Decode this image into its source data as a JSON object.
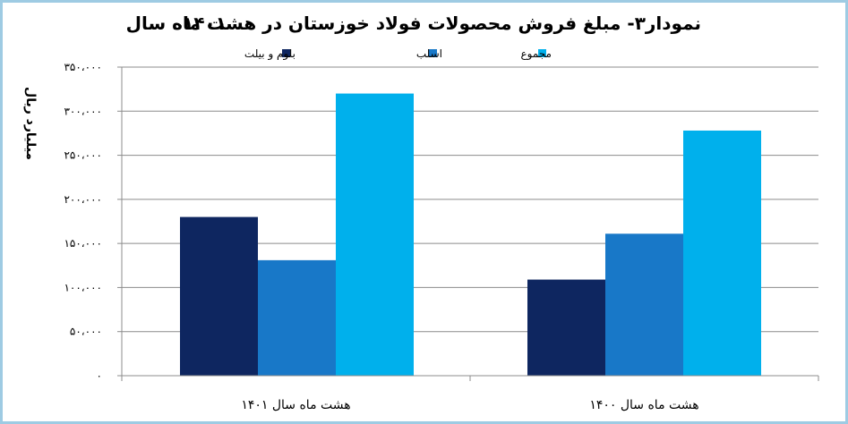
{
  "chart_data": {
    "type": "bar",
    "title_line1": "نمودار۳- مبلغ فروش محصولات فولاد خوزستان در هشت ماه سال",
    "title_line2": "۱۴۰۱",
    "ylabel": "میلیارد ریال",
    "categories": [
      "هشت ماه سال ۱۴۰۱",
      "هشت  ماه سال ۱۴۰۰"
    ],
    "series": [
      {
        "name": "بلوم و بیلت",
        "color": "#0e2660",
        "values": [
          180000,
          109000
        ]
      },
      {
        "name": "اسلب",
        "color": "#1878c8",
        "values": [
          131000,
          161000
        ]
      },
      {
        "name": "مجموع",
        "color": "#00b0ec",
        "values": [
          320000,
          278000
        ]
      }
    ],
    "ylim": [
      0,
      350000
    ],
    "yticks": [
      0,
      50000,
      100000,
      150000,
      200000,
      250000,
      300000,
      350000
    ],
    "ytick_labels": [
      "۰",
      "۵۰،۰۰۰",
      "۱۰۰،۰۰۰",
      "۱۵۰،۰۰۰",
      "۲۰۰،۰۰۰",
      "۲۵۰،۰۰۰",
      "۳۰۰،۰۰۰",
      "۳۵۰،۰۰۰"
    ],
    "grid": true,
    "legend_position": "top"
  }
}
